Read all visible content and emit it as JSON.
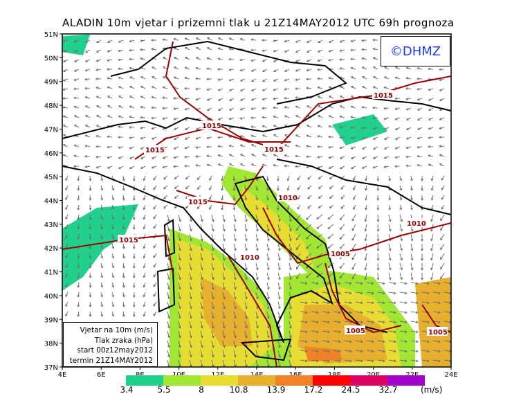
{
  "title": "ALADIN 10m vjetar i prizemni tlak u 21Z14MAY2012 UTC 69h prognoza",
  "logo": {
    "text": "©DHMZ",
    "color": "#1a3cff"
  },
  "legend_box": {
    "lines": [
      "Vjetar na 10m (m/s)",
      "Tlak zraka (hPa)",
      "start 00z12may2012",
      "termin 21Z14MAY2012"
    ]
  },
  "axes": {
    "lat_ticks": [
      "51N",
      "50N",
      "49N",
      "48N",
      "47N",
      "46N",
      "45N",
      "44N",
      "43N",
      "42N",
      "41N",
      "40N",
      "39N",
      "38N",
      "37N"
    ],
    "lon_ticks": [
      "4E",
      "6E",
      "8E",
      "10E",
      "12E",
      "14E",
      "16E",
      "18E",
      "20E",
      "22E",
      "24E"
    ]
  },
  "isobar_labels": [
    "1015",
    "1015",
    "1015",
    "1015",
    "1015",
    "1010",
    "1010",
    "1015",
    "1010",
    "1005",
    "1005",
    "1005"
  ],
  "colorbar": {
    "labels": [
      "3.4",
      "5.5",
      "8",
      "10.8",
      "13.9",
      "17.2",
      "24.5",
      "32.7"
    ],
    "units": "(m/s)",
    "colors": [
      "#20d08c",
      "#a0e632",
      "#e6dc32",
      "#e6af2d",
      "#f08228",
      "#fa0000",
      "#dc0064",
      "#a000c8"
    ]
  },
  "colors": {
    "isobar": "#9b0000",
    "arrow": "#707070",
    "coast": "#000000"
  }
}
